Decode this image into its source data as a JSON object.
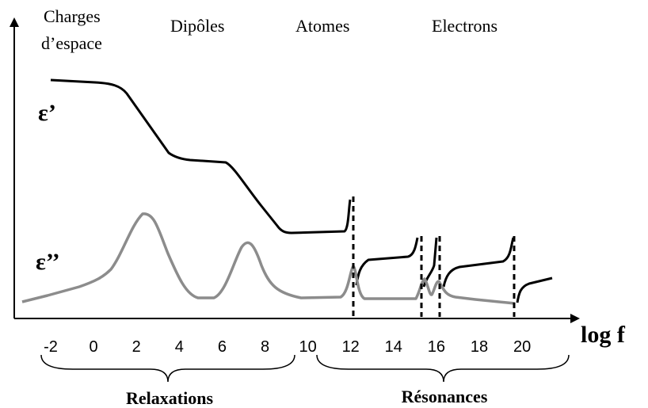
{
  "header": {
    "regions": [
      "Charges",
      "d’espace",
      "Dipôles",
      "Atomes",
      "Electrons"
    ]
  },
  "curves": {
    "real": "ε’",
    "imag": "ε’’"
  },
  "axis": {
    "label": "log f",
    "ticks": [
      -2,
      0,
      2,
      4,
      6,
      8,
      10,
      12,
      14,
      16,
      18,
      20
    ]
  },
  "groups": [
    "Relaxations",
    "Résonances"
  ]
}
